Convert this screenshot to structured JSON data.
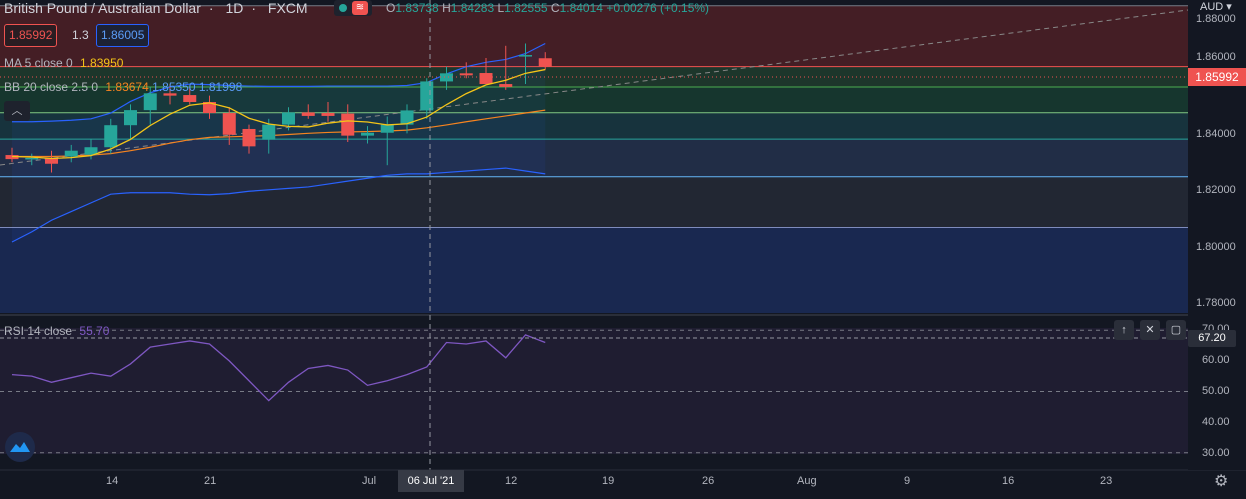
{
  "header": {
    "symbol_name": "British Pound / Australian Dollar",
    "interval": "1D",
    "exchange": "FXCM",
    "ohlc": {
      "o_label": "O",
      "o": "1.83738",
      "h_label": "H",
      "h": "1.84283",
      "l_label": "L",
      "l": "1.82555",
      "c_label": "C",
      "c": "1.84014",
      "change": "+0.00276 (+0.15%)"
    },
    "status_icon": "live-market-icon"
  },
  "trade": {
    "bid": "1.85992",
    "spread": "1.3",
    "ask": "1.86005"
  },
  "indicators": {
    "ma": {
      "name": "MA 5 close 0",
      "value": "1.83950",
      "color": "#f5c518"
    },
    "bb": {
      "name": "BB 20 close 2.5 0",
      "basis": "1.83674",
      "upper": "1.85350",
      "lower": "1.81998",
      "basis_color": "#f7841f",
      "band_color": "#2962ff"
    },
    "rsi": {
      "name": "RSI 14 close",
      "value": "55.70",
      "color": "#7e57c2"
    }
  },
  "price_axis": {
    "currency": "AUD",
    "labels": [
      "1.88000",
      "1.86000",
      "1.84000",
      "1.82000",
      "1.80000",
      "1.78000"
    ],
    "current_price": "1.85992"
  },
  "rsi_axis": {
    "labels": [
      "70.00",
      "60.00",
      "50.00",
      "40.00",
      "30.00"
    ],
    "crosshair_value": "67.20"
  },
  "time_axis": {
    "labels": [
      "14",
      "21",
      "Jul",
      "12",
      "19",
      "26",
      "Aug",
      "9",
      "16",
      "23"
    ],
    "crosshair_label": "06 Jul '21"
  },
  "colors": {
    "up": "#26a69a",
    "down": "#ef5350",
    "background": "#131722"
  },
  "chart_data": {
    "type": "candlestick",
    "x": [
      "Jun 9",
      "Jun 10",
      "Jun 11",
      "Jun 14",
      "Jun 15",
      "Jun 16",
      "Jun 17",
      "Jun 18",
      "Jun 21",
      "Jun 22",
      "Jun 23",
      "Jun 24",
      "Jun 25",
      "Jun 28",
      "Jun 29",
      "Jun 30",
      "Jul 1",
      "Jul 2",
      "Jul 5",
      "Jul 6",
      "Jul 7",
      "Jul 8",
      "Jul 9",
      "Jul 12",
      "Jul 13",
      "Jul 14",
      "Jul 15",
      "Jul 16"
    ],
    "open": [
      1.8295,
      1.8281,
      1.8285,
      1.829,
      1.8296,
      1.8322,
      1.8398,
      1.845,
      1.8508,
      1.8502,
      1.8478,
      1.844,
      1.8385,
      1.8348,
      1.84,
      1.8442,
      1.844,
      1.8438,
      1.8362,
      1.8372,
      1.84,
      1.8449,
      1.8549,
      1.8577,
      1.8578,
      1.854,
      1.864,
      1.8629
    ],
    "high": [
      1.832,
      1.83,
      1.831,
      1.833,
      1.835,
      1.842,
      1.847,
      1.853,
      1.854,
      1.853,
      1.85,
      1.846,
      1.84,
      1.842,
      1.846,
      1.847,
      1.8478,
      1.847,
      1.8395,
      1.8428,
      1.847,
      1.856,
      1.86,
      1.8615,
      1.863,
      1.8672,
      1.868,
      1.865
    ],
    "low": [
      1.827,
      1.826,
      1.8235,
      1.827,
      1.828,
      1.83,
      1.835,
      1.84,
      1.847,
      1.847,
      1.842,
      1.833,
      1.83,
      1.83,
      1.838,
      1.842,
      1.841,
      1.834,
      1.8335,
      1.826,
      1.837,
      1.842,
      1.852,
      1.856,
      1.854,
      1.852,
      1.854,
      1.859
    ],
    "close": [
      1.8281,
      1.8285,
      1.8265,
      1.831,
      1.8322,
      1.8398,
      1.845,
      1.8508,
      1.85,
      1.8478,
      1.844,
      1.8365,
      1.8325,
      1.84,
      1.8442,
      1.843,
      1.843,
      1.8362,
      1.8372,
      1.84,
      1.8449,
      1.8549,
      1.8577,
      1.857,
      1.854,
      1.853,
      1.864,
      1.8599
    ],
    "ma5": [
      1.829,
      1.8288,
      1.8283,
      1.8286,
      1.8293,
      1.8316,
      1.8349,
      1.8397,
      1.8436,
      1.8467,
      1.8475,
      1.8458,
      1.8422,
      1.8402,
      1.8394,
      1.8392,
      1.8405,
      1.8413,
      1.8409,
      1.8399,
      1.8403,
      1.8426,
      1.8469,
      1.8507,
      1.8537,
      1.8553,
      1.8577,
      1.859
    ],
    "bb_basis": [
      1.829,
      1.829,
      1.829,
      1.8292,
      1.8295,
      1.83,
      1.831,
      1.8322,
      1.8336,
      1.8348,
      1.8356,
      1.8358,
      1.836,
      1.8362,
      1.8366,
      1.837,
      1.8373,
      1.8375,
      1.8376,
      1.8378,
      1.8381,
      1.8389,
      1.8399,
      1.841,
      1.842,
      1.843,
      1.844,
      1.845
    ],
    "bb_upper": [
      1.841,
      1.841,
      1.8412,
      1.8415,
      1.842,
      1.844,
      1.848,
      1.851,
      1.853,
      1.854,
      1.8538,
      1.8535,
      1.8533,
      1.8532,
      1.8532,
      1.8532,
      1.8533,
      1.8533,
      1.8533,
      1.8533,
      1.8535,
      1.8545,
      1.8575,
      1.86,
      1.8615,
      1.8625,
      1.8645,
      1.868
    ],
    "bb_lower": [
      1.7995,
      1.803,
      1.807,
      1.81,
      1.813,
      1.816,
      1.8165,
      1.8165,
      1.8165,
      1.816,
      1.8158,
      1.8162,
      1.817,
      1.8175,
      1.818,
      1.8185,
      1.8195,
      1.8205,
      1.8215,
      1.8225,
      1.823,
      1.823,
      1.8235,
      1.824,
      1.8245,
      1.825,
      1.824,
      1.823
    ],
    "rsi": [
      55.5,
      55.0,
      53.0,
      54.5,
      56.0,
      55.0,
      59.0,
      64.5,
      65.5,
      66.5,
      65.5,
      60.0,
      53.5,
      47.0,
      53.0,
      57.5,
      58.5,
      57.0,
      52.0,
      53.5,
      55.5,
      58.0,
      66.0,
      65.5,
      66.5,
      61.0,
      68.5,
      66.0
    ],
    "fib_levels": [
      1.881,
      1.86,
      1.853,
      1.8441,
      1.835,
      1.822,
      1.8045
    ],
    "price_range": [
      1.775,
      1.883
    ],
    "rsi_range": [
      25,
      74
    ]
  }
}
